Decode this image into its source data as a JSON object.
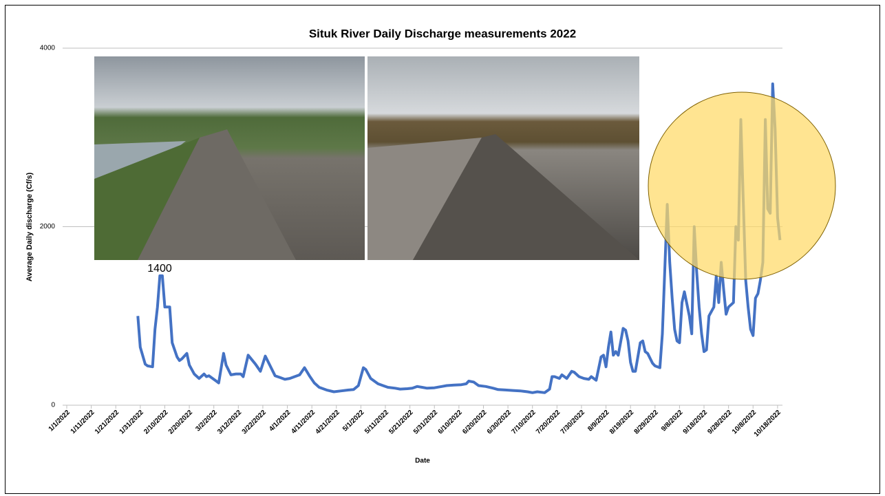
{
  "chart_data": {
    "type": "line",
    "title": "Situk River Daily Discharge measurements 2022",
    "x_label": "Date",
    "y_label": "Average Daily discharge (Cf/s)",
    "annotation": "1400",
    "color": "#4472c4",
    "grid": true,
    "xlim": [
      "1/1/2022",
      "10/20/2022"
    ],
    "xticks": [
      "1/1/2022",
      "1/11/2022",
      "1/21/2022",
      "1/31/2022",
      "2/10/2022",
      "2/20/2022",
      "3/2/2022",
      "3/12/2022",
      "3/22/2022",
      "4/1/2022",
      "4/11/2022",
      "4/21/2022",
      "5/1/2022",
      "5/11/2022",
      "5/21/2022",
      "5/31/2022",
      "6/10/2022",
      "6/20/2022",
      "6/30/2022",
      "7/10/2022",
      "7/20/2022",
      "7/30/2022",
      "8/9/2022",
      "8/19/2022",
      "8/29/2022",
      "9/8/2022",
      "9/18/2022",
      "9/28/2022",
      "10/8/2022",
      "10/18/2022"
    ],
    "ylim": [
      0,
      4000
    ],
    "yticks": [
      0,
      2000,
      4000
    ],
    "x": [
      "1/30/2022",
      "1/31/2022",
      "2/2/2022",
      "2/3/2022",
      "2/5/2022",
      "2/6/2022",
      "2/7/2022",
      "2/8/2022",
      "2/9/2022",
      "2/10/2022",
      "2/12/2022",
      "2/13/2022",
      "2/15/2022",
      "2/16/2022",
      "2/17/2022",
      "2/19/2022",
      "2/20/2022",
      "2/22/2022",
      "2/24/2022",
      "2/26/2022",
      "2/27/2022",
      "2/28/2022",
      "3/3/2022",
      "3/4/2022",
      "3/6/2022",
      "3/7/2022",
      "3/9/2022",
      "3/11/2022",
      "3/13/2022",
      "3/14/2022",
      "3/16/2022",
      "3/19/2022",
      "3/21/2022",
      "3/23/2022",
      "3/25/2022",
      "3/27/2022",
      "3/29/2022",
      "3/31/2022",
      "4/2/2022",
      "4/4/2022",
      "4/6/2022",
      "4/8/2022",
      "4/10/2022",
      "4/12/2022",
      "4/14/2022",
      "4/17/2022",
      "4/20/2022",
      "4/23/2022",
      "4/26/2022",
      "4/28/2022",
      "4/30/2022",
      "5/2/2022",
      "5/3/2022",
      "5/5/2022",
      "5/8/2022",
      "5/10/2022",
      "5/12/2022",
      "5/15/2022",
      "5/17/2022",
      "5/20/2022",
      "5/22/2022",
      "5/24/2022",
      "5/26/2022",
      "5/28/2022",
      "5/31/2022",
      "6/3/2022",
      "6/5/2022",
      "6/8/2022",
      "6/11/2022",
      "6/13/2022",
      "6/14/2022",
      "6/16/2022",
      "6/18/2022",
      "6/21/2022",
      "6/24/2022",
      "6/26/2022",
      "6/29/2022",
      "7/2/2022",
      "7/5/2022",
      "7/8/2022",
      "7/10/2022",
      "7/12/2022",
      "7/15/2022",
      "7/17/2022",
      "7/18/2022",
      "7/19/2022",
      "7/21/2022",
      "7/22/2022",
      "7/24/2022",
      "7/26/2022",
      "7/27/2022",
      "7/29/2022",
      "7/31/2022",
      "8/2/2022",
      "8/3/2022",
      "8/5/2022",
      "8/7/2022",
      "8/8/2022",
      "8/9/2022",
      "8/10/2022",
      "8/11/2022",
      "8/12/2022",
      "8/13/2022",
      "8/14/2022",
      "8/16/2022",
      "8/17/2022",
      "8/18/2022",
      "8/19/2022",
      "8/20/2022",
      "8/21/2022",
      "8/23/2022",
      "8/24/2022",
      "8/25/2022",
      "8/26/2022",
      "8/28/2022",
      "8/29/2022",
      "8/31/2022",
      "9/1/2022",
      "9/3/2022",
      "9/4/2022",
      "9/5/2022",
      "9/6/2022",
      "9/7/2022",
      "9/8/2022",
      "9/9/2022",
      "9/10/2022",
      "9/12/2022",
      "9/13/2022",
      "9/14/2022",
      "9/15/2022",
      "9/16/2022",
      "9/17/2022",
      "9/18/2022",
      "9/19/2022",
      "9/20/2022",
      "9/22/2022",
      "9/23/2022",
      "9/24/2022",
      "9/25/2022",
      "9/26/2022",
      "9/27/2022",
      "9/28/2022",
      "9/30/2022",
      "10/1/2022",
      "10/2/2022",
      "10/3/2022",
      "10/4/2022",
      "10/5/2022",
      "10/6/2022",
      "10/7/2022",
      "10/8/2022",
      "10/9/2022",
      "10/10/2022",
      "10/11/2022",
      "10/12/2022",
      "10/13/2022",
      "10/14/2022",
      "10/15/2022",
      "10/16/2022",
      "10/17/2022",
      "10/18/2022",
      "10/19/2022"
    ],
    "values": [
      1000,
      650,
      460,
      440,
      430,
      850,
      1100,
      1450,
      1450,
      1100,
      1100,
      700,
      540,
      500,
      520,
      580,
      450,
      350,
      300,
      350,
      320,
      330,
      270,
      250,
      580,
      450,
      340,
      350,
      350,
      320,
      560,
      460,
      380,
      550,
      440,
      330,
      310,
      290,
      300,
      320,
      340,
      420,
      330,
      250,
      200,
      170,
      150,
      160,
      170,
      175,
      220,
      420,
      400,
      300,
      240,
      220,
      200,
      190,
      180,
      185,
      190,
      210,
      200,
      190,
      195,
      210,
      220,
      225,
      230,
      240,
      270,
      260,
      220,
      210,
      190,
      175,
      170,
      165,
      160,
      150,
      140,
      150,
      140,
      180,
      320,
      320,
      300,
      340,
      300,
      380,
      370,
      320,
      300,
      290,
      320,
      280,
      540,
      560,
      430,
      650,
      820,
      560,
      600,
      560,
      860,
      840,
      720,
      480,
      380,
      380,
      700,
      720,
      600,
      580,
      470,
      440,
      420,
      800,
      2250,
      1600,
      1200,
      850,
      720,
      700,
      1150,
      1270,
      1000,
      800,
      2000,
      1500,
      1100,
      800,
      600,
      620,
      1000,
      1100,
      1450,
      1150,
      1600,
      1300,
      1020,
      1100,
      1150,
      2000,
      1850,
      3200,
      2300,
      1400,
      1100,
      850,
      780,
      1200,
      1250,
      1400,
      1600,
      3200,
      2200,
      2150,
      3600,
      3100,
      2100,
      1850
    ]
  }
}
